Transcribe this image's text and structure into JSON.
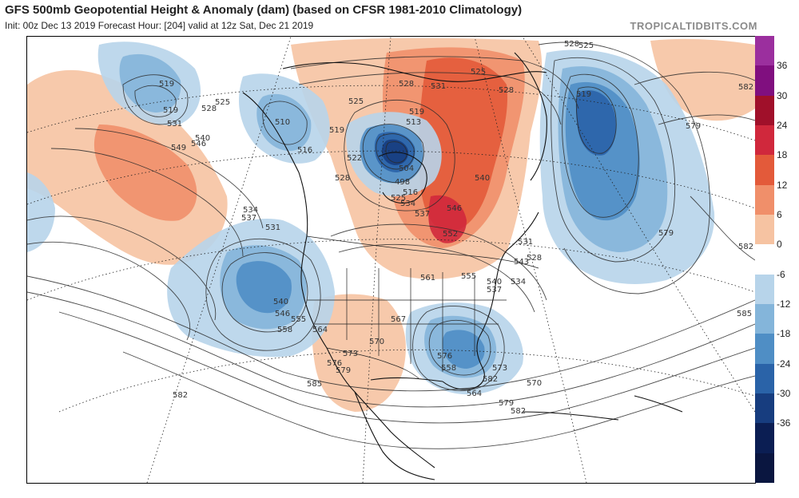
{
  "header": {
    "title": "GFS 500mb Geopotential Height & Anomaly (dam) (based on CFSR 1981-2010 Climatology)",
    "subtitle": "Init: 00z Dec 13 2019   Forecast Hour: [204]   valid at 12z Sat, Dec 21 2019",
    "brand": "TROPICALTIDBITS.COM"
  },
  "colorbar": {
    "levels": [
      {
        "label": "36",
        "color": "#800f7f"
      },
      {
        "label": "30",
        "color": "#a0102a"
      },
      {
        "label": "24",
        "color": "#d0283c"
      },
      {
        "label": "18",
        "color": "#e35a3a"
      },
      {
        "label": "12",
        "color": "#f08f6a"
      },
      {
        "label": "6",
        "color": "#f6c3a2"
      },
      {
        "label": "0",
        "color": "#ffffff"
      },
      {
        "label": "-6",
        "color": "#b7d4ea"
      },
      {
        "label": "-12",
        "color": "#84b5da"
      },
      {
        "label": "-18",
        "color": "#4f8ec5"
      },
      {
        "label": "-24",
        "color": "#2a63a8"
      },
      {
        "label": "-30",
        "color": "#173d7f"
      },
      {
        "label": "-36",
        "color": "#0b1e53"
      }
    ],
    "extra_colors": [
      "#9b2f9e",
      "#0a1640"
    ]
  },
  "map": {
    "anomaly_colors": {
      "neg_light": "#b7d4ea",
      "neg_mid": "#84b5da",
      "neg_strong": "#4f8ec5",
      "neg_deep": "#2a63a8",
      "neg_core": "#173d7f",
      "pos_light": "#f6c3a2",
      "pos_mid": "#f08f6a",
      "pos_strong": "#e35a3a",
      "pos_deep": "#d0283c"
    },
    "contour_labels": [
      "519",
      "519",
      "531",
      "540",
      "549",
      "546",
      "525",
      "528",
      "510",
      "516",
      "519",
      "522",
      "528",
      "534",
      "537",
      "531",
      "525",
      "528",
      "531",
      "525",
      "528",
      "519",
      "513",
      "504",
      "498",
      "516",
      "525",
      "534",
      "537",
      "540",
      "546",
      "552",
      "561",
      "555",
      "540",
      "537",
      "534",
      "543",
      "528",
      "531",
      "519",
      "528",
      "525",
      "582",
      "579",
      "582",
      "579",
      "585",
      "540",
      "546",
      "558",
      "555",
      "564",
      "567",
      "570",
      "573",
      "576",
      "579",
      "582",
      "573",
      "576",
      "558",
      "564",
      "570",
      "579",
      "582",
      "585",
      "582"
    ]
  }
}
